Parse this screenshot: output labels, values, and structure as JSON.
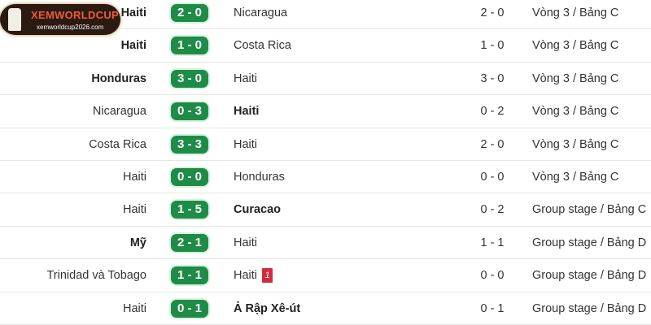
{
  "logo": {
    "title": "XEMWORLDCUP",
    "url": "xemworldcup2026.com"
  },
  "colors": {
    "score_bg": "#1e8c47",
    "red_card": "#d42b3a"
  },
  "matches": [
    {
      "home": "Haiti",
      "score": "2 - 0",
      "away": "Nicaragua",
      "ht": "2 - 0",
      "round": "Vòng 3 / Bảng C",
      "winner": "home"
    },
    {
      "home": "Haiti",
      "score": "1 - 0",
      "away": "Costa Rica",
      "ht": "1 - 0",
      "round": "Vòng 3 / Bảng C",
      "winner": "home"
    },
    {
      "home": "Honduras",
      "score": "3 - 0",
      "away": "Haiti",
      "ht": "3 - 0",
      "round": "Vòng 3 / Bảng C",
      "winner": "home"
    },
    {
      "home": "Nicaragua",
      "score": "0 - 3",
      "away": "Haiti",
      "ht": "0 - 2",
      "round": "Vòng 3 / Bảng C",
      "winner": "away"
    },
    {
      "home": "Costa Rica",
      "score": "3 - 3",
      "away": "Haiti",
      "ht": "2 - 0",
      "round": "Vòng 3 / Bảng C",
      "winner": ""
    },
    {
      "home": "Haiti",
      "score": "0 - 0",
      "away": "Honduras",
      "ht": "0 - 0",
      "round": "Vòng 3 / Bảng C",
      "winner": ""
    },
    {
      "home": "Haiti",
      "score": "1 - 5",
      "away": "Curacao",
      "ht": "0 - 2",
      "round": "Group stage / Bảng C",
      "winner": "away"
    },
    {
      "home": "Mỹ",
      "score": "2 - 1",
      "away": "Haiti",
      "ht": "1 - 1",
      "round": "Group stage / Bảng D",
      "winner": "home"
    },
    {
      "home": "Trinidad và Tobago",
      "score": "1 - 1",
      "away": "Haiti",
      "away_red_cards": "1",
      "ht": "0 - 0",
      "round": "Group stage / Bảng D",
      "winner": ""
    },
    {
      "home": "Haiti",
      "score": "0 - 1",
      "away": "Ả Rập Xê-út",
      "ht": "0 - 1",
      "round": "Group stage / Bảng D",
      "winner": "away"
    }
  ]
}
